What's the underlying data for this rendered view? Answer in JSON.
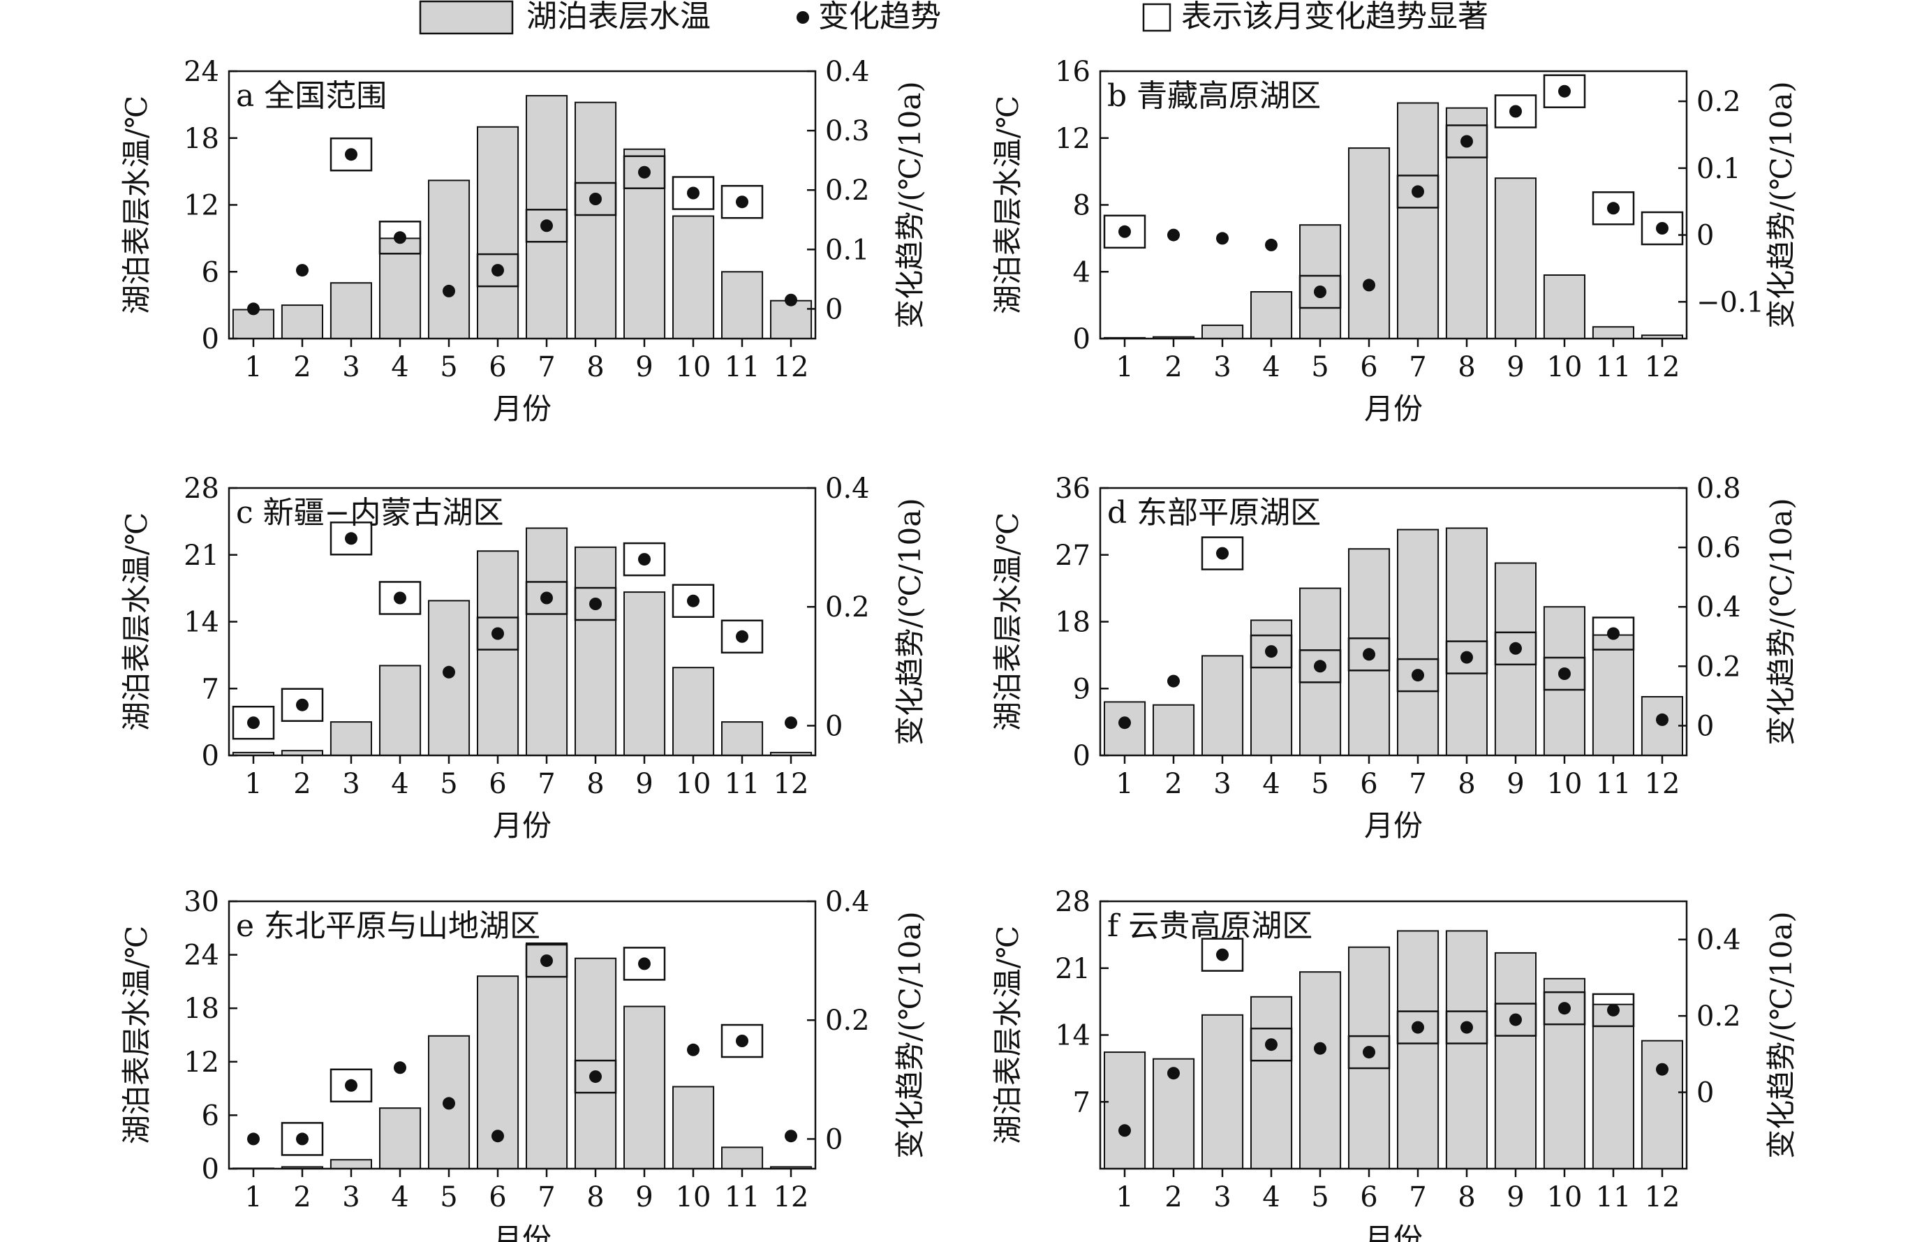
{
  "legend": {
    "bar_label": "湖泊表层水温",
    "dot_label": "变化趋势",
    "box_label": "表示该月变化趋势显著"
  },
  "colors": {
    "bar_fill": "#d3d3d3",
    "stroke": "#111111",
    "dot": "#111111",
    "background": "#ffffff"
  },
  "chart_data": [
    {
      "type": "bar",
      "title": "a 全国范围",
      "categories": [
        "1",
        "2",
        "3",
        "4",
        "5",
        "6",
        "7",
        "8",
        "9",
        "10",
        "11",
        "12"
      ],
      "xlabel": "月份",
      "ylabel": "湖泊表层水温/℃",
      "y2label": "变化趋势/(℃/10a)",
      "ylim": [
        0,
        24
      ],
      "yticks": [
        "0",
        "6",
        "12",
        "18",
        "24"
      ],
      "y2lim": [
        -0.05,
        0.4
      ],
      "y2ticks": [
        "0",
        "0.1",
        "0.2",
        "0.3",
        "0.4"
      ],
      "series": [
        {
          "name": "湖泊表层水温",
          "values": [
            2.6,
            3.0,
            5.0,
            9.0,
            14.2,
            19.0,
            21.8,
            21.2,
            17.0,
            11.0,
            6.0,
            3.4
          ]
        },
        {
          "name": "变化趋势",
          "axis": "right",
          "values": [
            0.0,
            0.065,
            0.26,
            0.12,
            0.03,
            0.065,
            0.14,
            0.185,
            0.23,
            0.195,
            0.18,
            0.015
          ],
          "significant": [
            false,
            false,
            true,
            true,
            false,
            true,
            true,
            true,
            true,
            true,
            true,
            false
          ]
        }
      ]
    },
    {
      "type": "bar",
      "title": "b 青藏高原湖区",
      "categories": [
        "1",
        "2",
        "3",
        "4",
        "5",
        "6",
        "7",
        "8",
        "9",
        "10",
        "11",
        "12"
      ],
      "xlabel": "月份",
      "ylabel": "湖泊表层水温/℃",
      "y2label": "变化趋势/(℃/10a)",
      "ylim": [
        0,
        16
      ],
      "yticks": [
        "0",
        "4",
        "8",
        "12",
        "16"
      ],
      "y2lim": [
        -0.155,
        0.245
      ],
      "y2ticks": [
        "−0.1",
        "0",
        "0.1",
        "0.2"
      ],
      "series": [
        {
          "name": "湖泊表层水温",
          "values": [
            0.05,
            0.1,
            0.8,
            2.8,
            6.8,
            11.4,
            14.1,
            13.8,
            9.6,
            3.8,
            0.7,
            0.2
          ]
        },
        {
          "name": "变化趋势",
          "axis": "right",
          "values": [
            0.005,
            0.0,
            -0.005,
            -0.015,
            -0.085,
            -0.075,
            0.065,
            0.14,
            0.185,
            0.215,
            0.04,
            0.01
          ],
          "significant": [
            true,
            false,
            false,
            false,
            true,
            false,
            true,
            true,
            true,
            true,
            true,
            true
          ]
        }
      ]
    },
    {
      "type": "bar",
      "title": "c 新疆−内蒙古湖区",
      "categories": [
        "1",
        "2",
        "3",
        "4",
        "5",
        "6",
        "7",
        "8",
        "9",
        "10",
        "11",
        "12"
      ],
      "xlabel": "月份",
      "ylabel": "湖泊表层水温/℃",
      "y2label": "变化趋势/(℃/10a)",
      "ylim": [
        0,
        28
      ],
      "yticks": [
        "0",
        "7",
        "14",
        "21",
        "28"
      ],
      "y2lim": [
        -0.05,
        0.4
      ],
      "y2ticks": [
        "0",
        "0.2",
        "0.4"
      ],
      "series": [
        {
          "name": "湖泊表层水温",
          "values": [
            0.3,
            0.5,
            3.5,
            9.4,
            16.2,
            21.4,
            23.8,
            21.8,
            17.1,
            9.2,
            3.5,
            0.3
          ]
        },
        {
          "name": "变化趋势",
          "axis": "right",
          "values": [
            0.005,
            0.035,
            0.315,
            0.215,
            0.09,
            0.155,
            0.215,
            0.205,
            0.28,
            0.21,
            0.15,
            0.005
          ],
          "significant": [
            true,
            true,
            true,
            true,
            false,
            true,
            true,
            true,
            true,
            true,
            true,
            false
          ]
        }
      ]
    },
    {
      "type": "bar",
      "title": "d 东部平原湖区",
      "categories": [
        "1",
        "2",
        "3",
        "4",
        "5",
        "6",
        "7",
        "8",
        "9",
        "10",
        "11",
        "12"
      ],
      "xlabel": "月份",
      "ylabel": "湖泊表层水温/℃",
      "y2label": "变化趋势/(℃/10a)",
      "ylim": [
        0,
        36
      ],
      "yticks": [
        "0",
        "9",
        "18",
        "27",
        "36"
      ],
      "y2lim": [
        -0.1,
        0.8
      ],
      "y2ticks": [
        "0",
        "0.2",
        "0.4",
        "0.6",
        "0.8"
      ],
      "series": [
        {
          "name": "湖泊表层水温",
          "values": [
            7.2,
            6.8,
            13.4,
            18.2,
            22.5,
            27.8,
            30.4,
            30.6,
            25.9,
            20.0,
            16.2,
            7.9
          ]
        },
        {
          "name": "变化趋势",
          "axis": "right",
          "values": [
            0.01,
            0.15,
            0.58,
            0.25,
            0.2,
            0.24,
            0.17,
            0.23,
            0.26,
            0.175,
            0.31,
            0.02
          ],
          "significant": [
            false,
            false,
            true,
            true,
            true,
            true,
            true,
            true,
            true,
            true,
            true,
            false
          ]
        }
      ]
    },
    {
      "type": "bar",
      "title": "e 东北平原与山地湖区",
      "categories": [
        "1",
        "2",
        "3",
        "4",
        "5",
        "6",
        "7",
        "8",
        "9",
        "10",
        "11",
        "12"
      ],
      "xlabel": "月份",
      "ylabel": "湖泊表层水温/℃",
      "y2label": "变化趋势/(℃/10a)",
      "ylim": [
        0,
        30
      ],
      "yticks": [
        "0",
        "6",
        "12",
        "18",
        "24",
        "30"
      ],
      "y2lim": [
        -0.05,
        0.4
      ],
      "y2ticks": [
        "0",
        "0.2",
        "0.4"
      ],
      "series": [
        {
          "name": "湖泊表层水温",
          "values": [
            0.05,
            0.2,
            1.0,
            6.8,
            14.9,
            21.6,
            25.3,
            23.6,
            18.2,
            9.2,
            2.4,
            0.2
          ]
        },
        {
          "name": "变化趋势",
          "axis": "right",
          "values": [
            0.0,
            0.0,
            0.09,
            0.12,
            0.06,
            0.005,
            0.3,
            0.105,
            0.295,
            0.15,
            0.165,
            0.005
          ],
          "significant": [
            false,
            true,
            true,
            false,
            false,
            false,
            true,
            true,
            true,
            false,
            true,
            false
          ]
        }
      ]
    },
    {
      "type": "bar",
      "title": "f 云贵高原湖区",
      "categories": [
        "1",
        "2",
        "3",
        "4",
        "5",
        "6",
        "7",
        "8",
        "9",
        "10",
        "11",
        "12"
      ],
      "xlabel": "月份",
      "ylabel": "湖泊表层水温/℃",
      "y2label": "变化趋势/(℃/10a)",
      "ylim": [
        0,
        28
      ],
      "yticks": [
        "7",
        "14",
        "21",
        "28"
      ],
      "y2lim": [
        -0.2,
        0.5
      ],
      "y2ticks": [
        "0",
        "0.2",
        "0.4"
      ],
      "series": [
        {
          "name": "湖泊表层水温",
          "values": [
            12.2,
            11.5,
            16.1,
            18.0,
            20.6,
            23.2,
            24.9,
            24.9,
            22.6,
            19.9,
            17.2,
            13.4
          ]
        },
        {
          "name": "变化趋势",
          "axis": "right",
          "values": [
            -0.1,
            0.05,
            0.36,
            0.125,
            0.115,
            0.105,
            0.17,
            0.17,
            0.19,
            0.22,
            0.215,
            0.06
          ],
          "significant": [
            false,
            false,
            true,
            true,
            false,
            true,
            true,
            true,
            true,
            true,
            true,
            false
          ]
        }
      ]
    }
  ]
}
